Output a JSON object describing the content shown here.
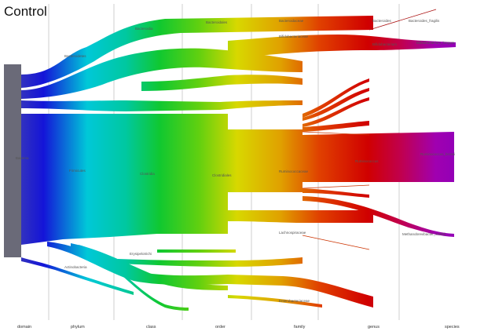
{
  "title": "Control",
  "levels": [
    "domain",
    "phylum",
    "class",
    "order",
    "family",
    "genus",
    "species"
  ],
  "nodes": {
    "domain_bacteria": "Bacteria",
    "phylum_firmicutes": "Firmicutes",
    "class_clostridia": "Clostridia",
    "order_clostridiales": "Clostridiales",
    "family_ruminococcaceae": "Ruminococcaceae",
    "genus_ruminococcus": "Ruminococcus",
    "species_ruminococcus": "Ruminococcus_bromii",
    "phylum_bacteroidetes": "Bacteroidetes",
    "class_bacteroidia": "Bacteroidia",
    "order_bacteroidales": "Bacteroidales",
    "family_bacteroidaceae": "Bacteroidaceae",
    "genus_bacteroides": "Bacteroides",
    "species_bacteroides": "Bacteroides_fragilis",
    "phylum_actinobacteria": "Actinobacteria",
    "family_bifido": "Bifidobacteriaceae",
    "genus_bifido": "Bifidobacterium",
    "species_bifido": "Bifidobacterium_longum",
    "species_methano": "Methanobrevibacter_smithii",
    "class_erysipelo": "Erysipelotrichi",
    "family_lachno": "Lachnospiraceae",
    "family_entero": "Enterobacteriaceae"
  }
}
